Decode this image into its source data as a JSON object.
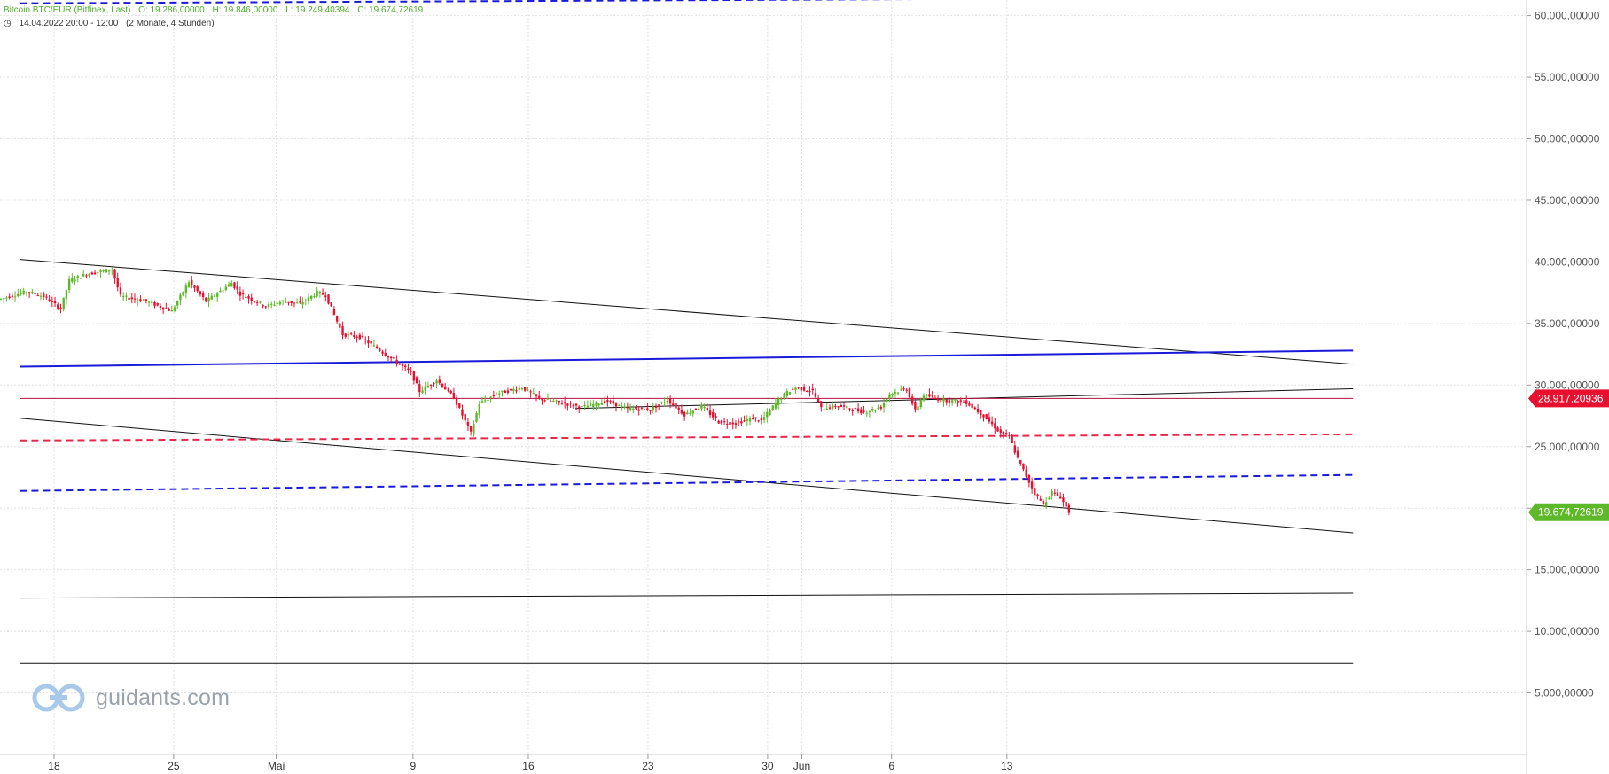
{
  "header": {
    "instrument": "Bitcoin BTC/EUR (Bitfinex, Last)",
    "open": "O: 19.286,00000",
    "high": "H: 19.846,00000",
    "low": "L: 19.249,40394",
    "close": "C: 19.674,72619",
    "range": "14.04.2022 20:00 - 12:00",
    "period": "(2 Monate, 4 Stunden)"
  },
  "logo": {
    "text": "guidants.com"
  },
  "colors": {
    "up": "#5db82a",
    "down": "#e8102f",
    "blue": "#1a1adb",
    "red_dash": "#e8284a",
    "trend": "#111111",
    "grid": "#e2e2e2"
  },
  "chart_data": {
    "type": "candlestick",
    "ylim": [
      0,
      62500000
    ],
    "y_ticks": [
      "5.000,00000",
      "10.000,00000",
      "15.000,00000",
      "20.000,00000",
      "25.000,00000",
      "30.000,00000",
      "35.000,00000",
      "40.000,00000",
      "45.000,00000",
      "50.000,00000",
      "55.000,00000",
      "60.000,00000"
    ],
    "x_ticks": [
      "18",
      "25",
      "Mai",
      "9",
      "16",
      "23",
      "30",
      "Jun",
      "6",
      "13"
    ],
    "price_labels": [
      {
        "value": 28917.20936,
        "text": "28.917,20936",
        "color": "#e8102f"
      },
      {
        "value": 19674.72619,
        "text": "19.674,72619",
        "color": "#5db82a"
      }
    ],
    "close_path": [
      [
        0,
        37000
      ],
      [
        3,
        37600
      ],
      [
        5,
        37200
      ],
      [
        7,
        36200
      ],
      [
        8,
        38500
      ],
      [
        10,
        39000
      ],
      [
        13,
        39400
      ],
      [
        14,
        37200
      ],
      [
        17,
        36800
      ],
      [
        20,
        36000
      ],
      [
        22,
        38400
      ],
      [
        24,
        36800
      ],
      [
        27,
        38300
      ],
      [
        28,
        37400
      ],
      [
        31,
        36400
      ],
      [
        33,
        36800
      ],
      [
        35,
        36600
      ],
      [
        37,
        37500
      ],
      [
        38,
        37300
      ],
      [
        40,
        34100
      ],
      [
        42,
        33900
      ],
      [
        44,
        33000
      ],
      [
        46,
        32000
      ],
      [
        48,
        31000
      ],
      [
        49,
        29500
      ],
      [
        51,
        30400
      ],
      [
        53,
        29000
      ],
      [
        55,
        26100
      ],
      [
        56,
        28500
      ],
      [
        58,
        29300
      ],
      [
        61,
        29800
      ],
      [
        63,
        28900
      ],
      [
        66,
        28500
      ],
      [
        68,
        28200
      ],
      [
        71,
        28700
      ],
      [
        73,
        28100
      ],
      [
        76,
        28000
      ],
      [
        78,
        28800
      ],
      [
        80,
        27600
      ],
      [
        82,
        28300
      ],
      [
        84,
        27000
      ],
      [
        86,
        26900
      ],
      [
        88,
        27300
      ],
      [
        89,
        27100
      ],
      [
        91,
        28800
      ],
      [
        92,
        29400
      ],
      [
        93,
        29800
      ],
      [
        95,
        29500
      ],
      [
        96,
        28100
      ],
      [
        98,
        28300
      ],
      [
        101,
        27800
      ],
      [
        103,
        28200
      ],
      [
        104,
        29300
      ],
      [
        106,
        29700
      ],
      [
        107,
        27900
      ],
      [
        108,
        29200
      ],
      [
        110,
        28800
      ],
      [
        113,
        28600
      ],
      [
        115,
        27500
      ],
      [
        117,
        26100
      ],
      [
        118,
        25800
      ],
      [
        119,
        24000
      ],
      [
        120,
        22600
      ],
      [
        121,
        21200
      ],
      [
        122,
        20300
      ],
      [
        123,
        21300
      ],
      [
        124,
        20900
      ],
      [
        125,
        19700
      ]
    ],
    "trendlines": [
      {
        "type": "solid-black",
        "from": [
          -5,
          40200
        ],
        "to": [
          151,
          31700
        ]
      },
      {
        "type": "solid-black",
        "from": [
          -5,
          27300
        ],
        "to": [
          151,
          18000
        ]
      },
      {
        "type": "solid-black",
        "from": [
          -5,
          12700
        ],
        "to": [
          151,
          13100
        ]
      },
      {
        "type": "solid-black",
        "from": [
          -5,
          7400
        ],
        "to": [
          151,
          7400
        ]
      },
      {
        "type": "solid-black",
        "from": [
          60,
          28100
        ],
        "to": [
          151,
          29700
        ]
      },
      {
        "type": "solid-blue",
        "from": [
          -5,
          31500
        ],
        "to": [
          151,
          32800
        ]
      },
      {
        "type": "dashed-blue",
        "from": [
          -5,
          61000
        ],
        "to": [
          151,
          61500
        ]
      },
      {
        "type": "dashed-blue",
        "from": [
          -5,
          21400
        ],
        "to": [
          151,
          22700
        ]
      },
      {
        "type": "dashed-red",
        "from": [
          -5,
          25500
        ],
        "to": [
          151,
          26000
        ]
      },
      {
        "type": "thin-red",
        "from": [
          -5,
          28917
        ],
        "to": [
          151,
          28917
        ]
      }
    ]
  }
}
